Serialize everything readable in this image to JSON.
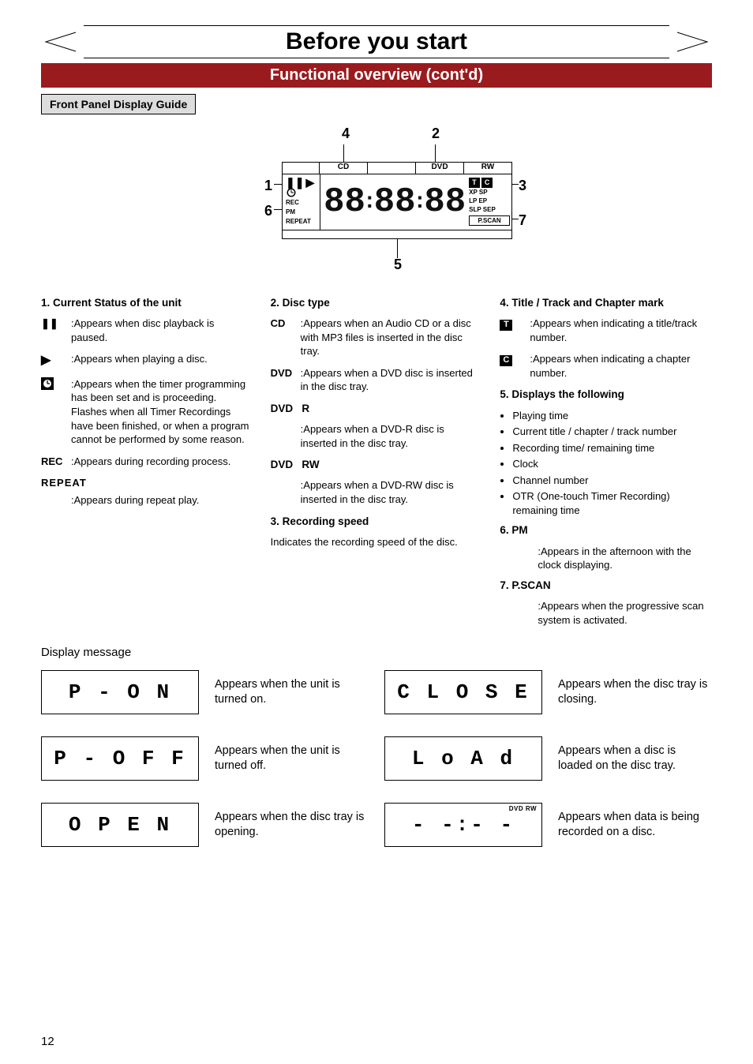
{
  "title": "Before you start",
  "subtitle": "Functional overview (cont'd)",
  "subguide": "Front Panel Display Guide",
  "diagram": {
    "nums": {
      "n1": "1",
      "n2": "2",
      "n3": "3",
      "n4": "4",
      "n5": "5",
      "n6": "6",
      "n7": "7"
    },
    "topstrip": {
      "cd": "CD",
      "dvd": "DVD",
      "rw": "RW"
    },
    "left": {
      "timer": "⏱",
      "rec": "REC",
      "pm": "PM",
      "repeat": "REPEAT"
    },
    "right": {
      "t": "T",
      "c": "C",
      "xpsp": "XP SP",
      "lpep": "LP EP",
      "slpsep": "SLP SEP",
      "pscan": "P.SCAN"
    }
  },
  "col1": {
    "h": "1. Current Status of the unit",
    "pause": {
      "glyph": "❚❚",
      "txt": ":Appears when disc playback is paused."
    },
    "play": {
      "glyph": "▶",
      "txt": ":Appears when playing a disc."
    },
    "timer": {
      "txt": ":Appears when the timer programming has been set and is proceeding. Flashes when all Timer Recordings have been finished, or when a program cannot be performed by some reason."
    },
    "rec": {
      "glyph": "REC",
      "txt": ":Appears during recording process."
    },
    "repeat": {
      "glyph": "REPEAT",
      "txt": ":Appears during repeat play."
    }
  },
  "col2": {
    "h2": "2. Disc type",
    "cd": {
      "glyph": "CD",
      "txt": ":Appears when an Audio CD or a disc with MP3 files is inserted in the disc tray."
    },
    "dvd": {
      "glyph": "DVD",
      "txt": ":Appears when a DVD disc is inserted in the disc tray."
    },
    "dvdr_h": "DVD   R",
    "dvdr_txt": ":Appears when a DVD-R disc is inserted in the disc tray.",
    "dvdrw_h": "DVD   RW",
    "dvdrw_txt": ":Appears when a DVD-RW disc is inserted in the disc tray.",
    "h3": "3. Recording speed",
    "rec_speed": "Indicates the recording speed of the disc."
  },
  "col3": {
    "h4": "4. Title / Track and Chapter mark",
    "t": {
      "txt": ":Appears when indicating a title/track number."
    },
    "c": {
      "txt": ":Appears when indicating a chapter number."
    },
    "h5": "5. Displays the following",
    "bullets": [
      "Playing time",
      "Current title / chapter / track number",
      "Recording time/ remaining time",
      "Clock",
      "Channel number",
      "OTR (One-touch Timer Recording) remaining time"
    ],
    "h6": "6. ",
    "pm_glyph": "PM",
    "pm_txt": ":Appears in the afternoon with the clock displaying.",
    "h7": "7. ",
    "pscan_glyph": "P.SCAN",
    "pscan_txt": ":Appears when the progressive scan system is activated."
  },
  "dm": {
    "title": "Display message",
    "rows": [
      {
        "box": "P - O N",
        "desc": "Appears when the unit is turned on."
      },
      {
        "box": "C L O S E",
        "desc": "Appears when the disc tray is closing."
      },
      {
        "box": "P - O F F",
        "desc": "Appears when the unit is turned off."
      },
      {
        "box": "L o A d",
        "desc": "Appears when a disc is loaded on the disc tray."
      },
      {
        "box": "O P E N",
        "desc": "Appears when the disc tray is opening."
      },
      {
        "box": "- -:- -",
        "top": "DVD   RW",
        "desc": "Appears when data is being recorded on a disc."
      }
    ]
  },
  "page_number": "12"
}
